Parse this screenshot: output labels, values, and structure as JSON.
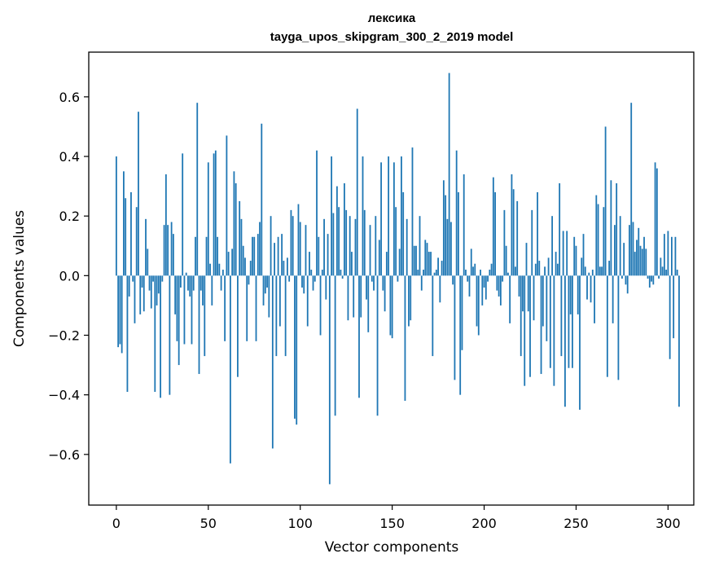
{
  "chart_data": {
    "type": "bar",
    "title": "лексика",
    "subtitle": "tayga_upos_skipgram_300_2_2019 model",
    "xlabel": "Vector components",
    "ylabel": "Components values",
    "xlim": [
      -15,
      314
    ],
    "ylim": [
      -0.77,
      0.75
    ],
    "x_ticks": [
      0,
      50,
      100,
      150,
      200,
      250,
      300
    ],
    "x_tick_labels": [
      "0",
      "50",
      "100",
      "150",
      "200",
      "250",
      "300"
    ],
    "y_ticks": [
      -0.6,
      -0.4,
      -0.2,
      0.0,
      0.2,
      0.4,
      0.6
    ],
    "y_tick_labels": [
      "−0.6",
      "−0.4",
      "−0.2",
      "0.0",
      "0.2",
      "0.4",
      "0.6"
    ],
    "bar_color": "#1f77b4",
    "grid": false,
    "values": [
      0.4,
      -0.24,
      -0.23,
      -0.26,
      0.35,
      0.26,
      -0.39,
      -0.07,
      0.28,
      -0.02,
      -0.16,
      0.23,
      0.55,
      -0.13,
      -0.04,
      -0.12,
      0.19,
      0.09,
      -0.05,
      -0.11,
      -0.02,
      -0.39,
      -0.1,
      -0.06,
      -0.41,
      -0.02,
      0.17,
      0.34,
      0.17,
      -0.4,
      0.18,
      0.14,
      -0.13,
      -0.22,
      -0.3,
      -0.04,
      0.41,
      -0.23,
      0.01,
      -0.05,
      -0.07,
      -0.23,
      -0.05,
      0.13,
      0.58,
      -0.33,
      -0.05,
      -0.1,
      -0.27,
      0.13,
      0.38,
      0.04,
      -0.1,
      0.41,
      0.42,
      0.13,
      0.04,
      -0.05,
      0.02,
      -0.22,
      0.47,
      0.08,
      -0.63,
      0.09,
      0.35,
      0.31,
      -0.34,
      0.25,
      0.19,
      0.1,
      0.06,
      -0.22,
      -0.03,
      0.05,
      0.13,
      0.13,
      -0.22,
      0.14,
      0.18,
      0.51,
      -0.1,
      -0.06,
      -0.04,
      -0.14,
      0.2,
      -0.58,
      0.11,
      -0.27,
      0.13,
      -0.17,
      0.14,
      0.05,
      -0.27,
      0.06,
      -0.02,
      0.22,
      0.2,
      -0.48,
      -0.5,
      0.24,
      0.18,
      -0.04,
      -0.06,
      0.17,
      -0.17,
      0.08,
      0.02,
      -0.05,
      -0.02,
      0.42,
      0.13,
      -0.2,
      0.02,
      0.19,
      -0.08,
      0.14,
      -0.7,
      0.4,
      0.21,
      -0.47,
      0.3,
      0.23,
      0.02,
      -0.01,
      0.31,
      0.22,
      -0.15,
      0.2,
      0.08,
      -0.14,
      0.19,
      0.56,
      -0.41,
      -0.14,
      0.4,
      0.22,
      -0.08,
      -0.19,
      0.17,
      -0.02,
      -0.05,
      0.2,
      -0.47,
      0.12,
      0.38,
      -0.05,
      -0.12,
      0.08,
      0.4,
      -0.2,
      -0.21,
      0.38,
      0.23,
      -0.02,
      0.09,
      0.4,
      0.28,
      -0.42,
      0.19,
      -0.17,
      -0.15,
      0.43,
      0.1,
      0.1,
      0.02,
      0.2,
      -0.05,
      0.02,
      0.12,
      0.11,
      0.08,
      0.08,
      -0.27,
      0.01,
      0.02,
      0.06,
      -0.09,
      0.05,
      0.32,
      0.27,
      0.19,
      0.68,
      0.18,
      -0.03,
      -0.35,
      0.42,
      0.28,
      -0.4,
      -0.25,
      0.34,
      0.02,
      -0.02,
      -0.07,
      0.09,
      0.03,
      0.04,
      -0.17,
      -0.2,
      0.02,
      -0.1,
      -0.04,
      -0.08,
      -0.02,
      0.02,
      0.04,
      0.33,
      0.28,
      -0.05,
      -0.07,
      -0.1,
      -0.02,
      0.22,
      0.1,
      0.01,
      -0.16,
      0.34,
      0.29,
      0.03,
      0.25,
      -0.07,
      -0.27,
      -0.12,
      -0.37,
      0.11,
      -0.12,
      -0.34,
      0.22,
      -0.15,
      0.04,
      0.28,
      0.05,
      -0.33,
      -0.17,
      0.03,
      -0.22,
      0.06,
      -0.31,
      0.2,
      -0.37,
      0.08,
      0.04,
      0.31,
      -0.27,
      0.15,
      -0.44,
      0.15,
      -0.31,
      -0.13,
      -0.31,
      0.13,
      0.1,
      -0.13,
      -0.45,
      0.06,
      0.14,
      0.03,
      -0.08,
      0.01,
      -0.09,
      0.02,
      -0.16,
      0.27,
      0.24,
      0.03,
      0.03,
      0.23,
      0.5,
      -0.34,
      0.05,
      0.32,
      -0.16,
      0.17,
      0.31,
      -0.35,
      0.2,
      -0.01,
      0.11,
      -0.03,
      -0.06,
      0.17,
      0.58,
      0.18,
      0.08,
      0.12,
      0.16,
      0.1,
      0.09,
      0.13,
      0.09,
      -0.01,
      -0.04,
      -0.02,
      -0.03,
      0.38,
      0.36,
      -0.01,
      0.06,
      0.03,
      0.14,
      0.02,
      0.15,
      -0.28,
      0.13,
      -0.21,
      0.13,
      0.02,
      -0.44
    ]
  }
}
